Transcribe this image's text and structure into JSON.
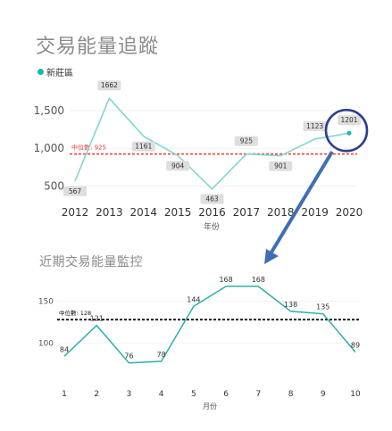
{
  "top": {
    "title": "交易能量追蹤",
    "legend_label": "新莊區"
  },
  "bottom": {
    "title": "近期交易能量監控"
  },
  "chart_data": [
    {
      "type": "line",
      "x": [
        2012,
        2013,
        2014,
        2015,
        2016,
        2017,
        2018,
        2019,
        2020
      ],
      "series": [
        {
          "name": "新莊區",
          "values": [
            567,
            1662,
            1161,
            904,
            463,
            925,
            901,
            1123,
            1201
          ]
        }
      ],
      "xlabel": "年份",
      "ylabel": "",
      "ylim": [
        400,
        1700
      ],
      "yticks": [
        "500",
        "1,000",
        "1,500"
      ],
      "median": {
        "label": "中位數: 925",
        "value": 925
      },
      "annotation": "circle highlight on 2020 point with arrow to lower chart",
      "color": "#7fd6d0"
    },
    {
      "type": "line",
      "x": [
        1,
        2,
        3,
        4,
        5,
        6,
        7,
        8,
        9,
        10
      ],
      "series": [
        {
          "values": [
            84,
            121,
            76,
            78,
            144,
            168,
            168,
            138,
            135,
            89
          ]
        }
      ],
      "xlabel": "月份",
      "ylabel": "",
      "ylim": [
        65,
        185
      ],
      "yticks": [
        "100",
        "150"
      ],
      "median": {
        "label": "中位數: 128",
        "value": 128
      },
      "color": "#2ab0a8"
    }
  ]
}
